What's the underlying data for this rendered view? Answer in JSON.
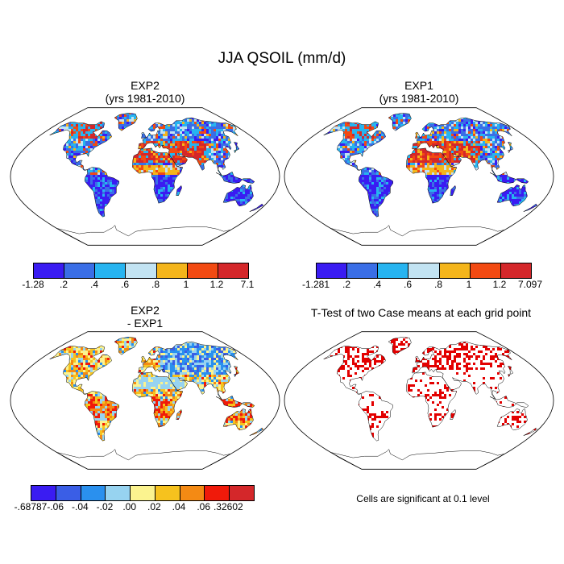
{
  "main_title": "JJA QSOIL (mm/d)",
  "panels": [
    {
      "id": "exp2",
      "title_line1": "EXP2",
      "title_line2": "(yrs 1981-2010)",
      "colorbar": {
        "colors": [
          "#3a1cf2",
          "#3a6ee6",
          "#27b4f0",
          "#c2e3f2",
          "#f4b51b",
          "#f24a12",
          "#d4272a"
        ],
        "labels": [
          "-1.28",
          ".2",
          ".4",
          ".6",
          ".8",
          "1",
          "1.2",
          "7.1"
        ]
      }
    },
    {
      "id": "exp1",
      "title_line1": "EXP1",
      "title_line2": "(yrs 1981-2010)",
      "colorbar": {
        "colors": [
          "#3a1cf2",
          "#3a6ee6",
          "#27b4f0",
          "#c2e3f2",
          "#f4b51b",
          "#f24a12",
          "#d4272a"
        ],
        "labels": [
          "-1.281",
          ".2",
          ".4",
          ".6",
          ".8",
          "1",
          "1.2",
          "7.097"
        ]
      }
    },
    {
      "id": "diff",
      "title_line1": "EXP2",
      "title_line2": "- EXP1",
      "colorbar": {
        "colors": [
          "#3a1cf2",
          "#3a5ee6",
          "#2a90ee",
          "#97d3f0",
          "#fbf38f",
          "#f6c21e",
          "#f48a14",
          "#f01a0a",
          "#d4272a"
        ],
        "labels": [
          "-.68787",
          "-.06",
          "-.04",
          "-.02",
          ".00",
          ".02",
          ".04",
          ".06",
          ".32602"
        ]
      }
    },
    {
      "id": "ttest",
      "title_line1": "T-Test of two Case means at each grid point",
      "note": "Cells are significant at 0.1 level",
      "color": "#e30000"
    }
  ]
}
